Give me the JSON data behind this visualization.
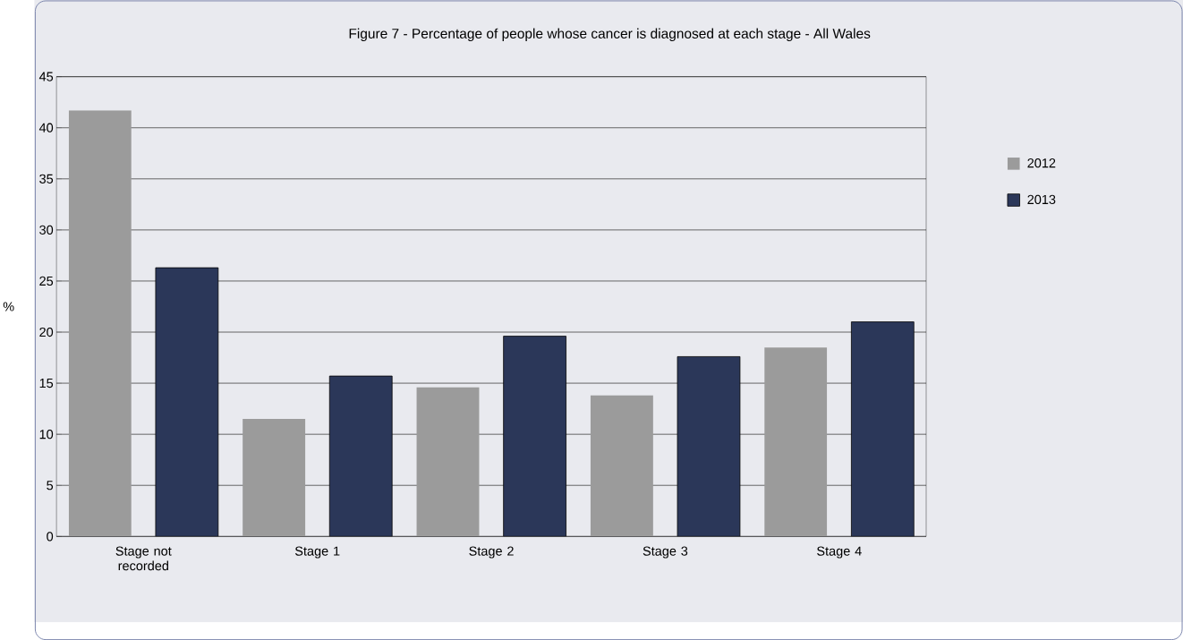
{
  "chart_data": {
    "type": "bar",
    "title": "Figure 7 - Percentage of people whose cancer is diagnosed at each stage - All Wales",
    "ylabel": "%",
    "categories": [
      "Stage not recorded",
      "Stage 1",
      "Stage 2",
      "Stage 3",
      "Stage 4"
    ],
    "series": [
      {
        "name": "2012",
        "color": "#9b9b9b",
        "values": [
          41.7,
          11.5,
          14.6,
          13.8,
          18.5
        ]
      },
      {
        "name": "2013",
        "color": "#2b3759",
        "values": [
          26.3,
          15.7,
          19.6,
          17.6,
          21.0
        ]
      }
    ],
    "ylim": [
      0,
      45
    ],
    "yticks": [
      0,
      5,
      10,
      15,
      20,
      25,
      30,
      35,
      40,
      45
    ],
    "grid": "y",
    "legend": "right"
  }
}
